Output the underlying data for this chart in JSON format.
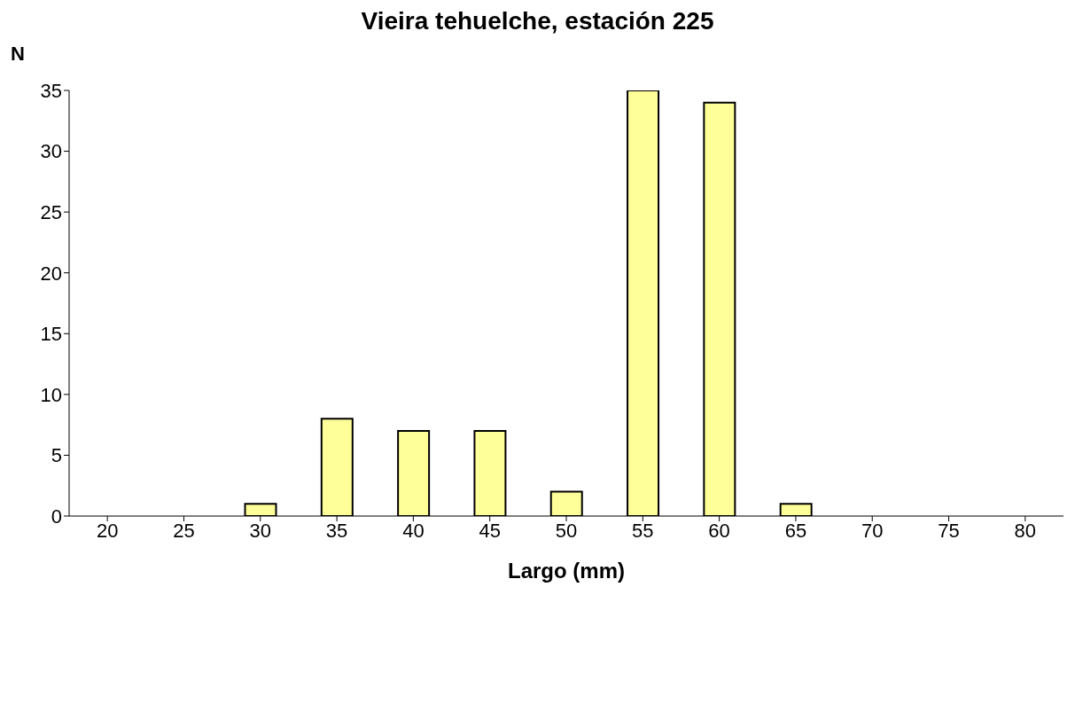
{
  "chart_data": {
    "type": "bar",
    "title": "Vieira tehuelche, estación 225",
    "xlabel": "Largo (mm)",
    "ylabel": "N",
    "categories": [
      "20",
      "25",
      "30",
      "35",
      "40",
      "45",
      "50",
      "55",
      "60",
      "65",
      "70",
      "75",
      "80"
    ],
    "values": [
      0,
      0,
      1,
      8,
      7,
      7,
      2,
      35,
      34,
      1,
      0,
      0,
      0
    ],
    "color": "#ffff99",
    "ylim": [
      0,
      35
    ],
    "yticks": [
      0,
      5,
      10,
      15,
      20,
      25,
      30,
      35
    ],
    "grid": false,
    "legend": false
  }
}
